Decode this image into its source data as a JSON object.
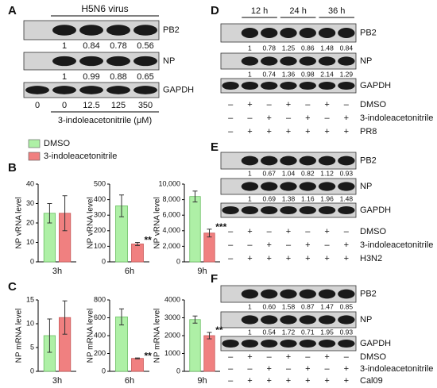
{
  "chart_data": [
    {
      "type": "bar",
      "ylabel": "NP vRNA level",
      "xlabel": "3h",
      "ylim": [
        0,
        40
      ],
      "yticks": [
        0,
        10,
        20,
        30,
        40
      ],
      "series": [
        {
          "name": "DMSO",
          "color": "#aef0a6",
          "values": [
            25
          ],
          "errors": [
            5
          ]
        },
        {
          "name": "3-indoleacetonitrile",
          "color": "#f08080",
          "values": [
            25
          ],
          "errors": [
            9
          ]
        }
      ]
    },
    {
      "type": "bar",
      "ylabel": "NP vRNA level",
      "xlabel": "6h",
      "ylim": [
        0,
        500
      ],
      "yticks": [
        0,
        100,
        200,
        300,
        400,
        500
      ],
      "series": [
        {
          "color": "#aef0a6",
          "values": [
            360
          ],
          "errors": [
            70
          ]
        },
        {
          "color": "#f08080",
          "values": [
            115
          ],
          "errors": [
            10
          ],
          "annotation": "**"
        }
      ]
    },
    {
      "type": "bar",
      "ylabel": "NP vRNA level",
      "xlabel": "9h",
      "ylim": [
        0,
        10000
      ],
      "yticks": [
        0,
        {
          "value": 2000,
          "label": "2,000"
        },
        {
          "value": 4000,
          "label": "4,000"
        },
        {
          "value": 6000,
          "label": "6,000"
        },
        {
          "value": 8000,
          "label": "8,000"
        },
        {
          "value": 10000,
          "label": "10,000"
        }
      ],
      "series": [
        {
          "color": "#aef0a6",
          "values": [
            8400
          ],
          "errors": [
            700
          ]
        },
        {
          "color": "#f08080",
          "values": [
            3700
          ],
          "errors": [
            500
          ],
          "annotation": "***"
        }
      ]
    },
    {
      "type": "bar",
      "ylabel": "NP mRNA level",
      "xlabel": "3h",
      "ylim": [
        0,
        15
      ],
      "yticks": [
        0,
        5,
        10,
        15
      ],
      "series": [
        {
          "color": "#aef0a6",
          "values": [
            7.5
          ],
          "errors": [
            3.5
          ]
        },
        {
          "color": "#f08080",
          "values": [
            11.3
          ],
          "errors": [
            3.5
          ]
        }
      ]
    },
    {
      "type": "bar",
      "ylabel": "NP mRNA level",
      "xlabel": "6h",
      "ylim": [
        0,
        800
      ],
      "yticks": [
        0,
        200,
        400,
        600,
        800
      ],
      "series": [
        {
          "color": "#aef0a6",
          "values": [
            610
          ],
          "errors": [
            90
          ]
        },
        {
          "color": "#f08080",
          "values": [
            145
          ],
          "errors": [
            5
          ],
          "annotation": "**"
        }
      ]
    },
    {
      "type": "bar",
      "ylabel": "NP mRNA level",
      "xlabel": "9h",
      "ylim": [
        0,
        4000
      ],
      "yticks": [
        0,
        1000,
        2000,
        3000,
        4000
      ],
      "series": [
        {
          "color": "#aef0a6",
          "values": [
            2900
          ],
          "errors": [
            200
          ]
        },
        {
          "color": "#f08080",
          "values": [
            2000
          ],
          "errors": [
            180
          ],
          "annotation": "**"
        }
      ]
    }
  ],
  "panel_labels": [
    "B",
    "C"
  ],
  "blots": [
    {
      "label": "A",
      "header": "H5N6 virus",
      "rows": [
        {
          "name": "PB2",
          "quant": [
            "1",
            "0.84",
            "0.78",
            "0.56"
          ]
        },
        {
          "name": "NP",
          "quant": [
            "1",
            "0.99",
            "0.88",
            "0.65"
          ]
        },
        {
          "name": "GAPDH"
        }
      ],
      "lanes": [
        "0",
        "0",
        "12.5",
        "125",
        "350"
      ],
      "caption": "3-indoleacetonitrile (μM)"
    },
    {
      "label": "D",
      "times": [
        "12 h",
        "24 h",
        "36 h"
      ],
      "rows": [
        {
          "name": "PB2",
          "quant": [
            "1",
            "0.78",
            "1.25",
            "0.86",
            "1.48",
            "0.84"
          ]
        },
        {
          "name": "NP",
          "quant": [
            "1",
            "0.74",
            "1.36",
            "0.98",
            "2.14",
            "1.29"
          ]
        },
        {
          "name": "GAPDH"
        }
      ],
      "treatments": [
        {
          "name": "DMSO",
          "signs": [
            "–",
            "+",
            "–",
            "+",
            "–",
            "+",
            "–"
          ]
        },
        {
          "name": "3-indoleacetonitrile",
          "signs": [
            "–",
            "–",
            "+",
            "–",
            "+",
            "–",
            "+"
          ]
        },
        {
          "name": "PR8",
          "signs": [
            "–",
            "+",
            "+",
            "+",
            "+",
            "+",
            "+"
          ]
        }
      ]
    },
    {
      "label": "E",
      "rows": [
        {
          "name": "PB2",
          "quant": [
            "1",
            "0.67",
            "1.04",
            "0.82",
            "1.12",
            "0.93"
          ]
        },
        {
          "name": "NP",
          "quant": [
            "1",
            "0.69",
            "1.38",
            "1.16",
            "1.96",
            "1.48"
          ]
        },
        {
          "name": "GAPDH"
        }
      ],
      "treatments": [
        {
          "name": "DMSO",
          "signs": [
            "–",
            "+",
            "–",
            "+",
            "–",
            "+",
            "–"
          ]
        },
        {
          "name": "3-indoleacetonitrile",
          "signs": [
            "–",
            "–",
            "+",
            "–",
            "+",
            "–",
            "+"
          ]
        },
        {
          "name": "H3N2",
          "signs": [
            "–",
            "+",
            "+",
            "+",
            "+",
            "+",
            "+"
          ]
        }
      ]
    },
    {
      "label": "F",
      "rows": [
        {
          "name": "PB2",
          "quant": [
            "1",
            "0.60",
            "1.58",
            "0.87",
            "1.47",
            "0.85"
          ]
        },
        {
          "name": "NP",
          "quant": [
            "1",
            "0.54",
            "1.72",
            "0.71",
            "1.95",
            "0.93"
          ]
        },
        {
          "name": "GAPDH"
        }
      ],
      "treatments": [
        {
          "name": "DMSO",
          "signs": [
            "–",
            "+",
            "–",
            "+",
            "–",
            "+",
            "–"
          ]
        },
        {
          "name": "3-indoleacetonitrile",
          "signs": [
            "–",
            "–",
            "+",
            "–",
            "+",
            "–",
            "+"
          ]
        },
        {
          "name": "Cal09",
          "signs": [
            "–",
            "+",
            "+",
            "+",
            "+",
            "+",
            "+"
          ]
        }
      ]
    }
  ]
}
